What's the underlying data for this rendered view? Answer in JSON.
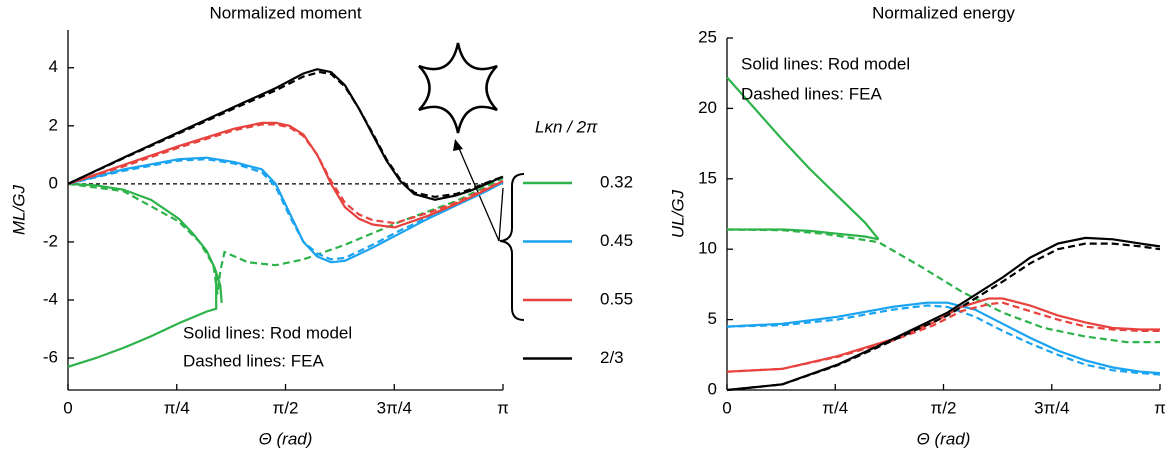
{
  "chart_data": [
    {
      "type": "line",
      "title": "Normalized moment",
      "xlabel": "Θ (rad)",
      "ylabel": "ML/GJ",
      "xlim": [
        0,
        3.1416
      ],
      "ylim": [
        -7.1,
        5.3
      ],
      "xticks": [
        0,
        {
          "value": 0.7854,
          "label": "π/4"
        },
        {
          "value": 1.5708,
          "label": "π/2"
        },
        {
          "value": 2.3562,
          "label": "3π/4"
        },
        {
          "value": 3.1416,
          "label": "π"
        }
      ],
      "yticks": [
        -6,
        -4,
        -2,
        0,
        2,
        4
      ],
      "zero_line": true,
      "legend": true,
      "legend_title": "Lκn / 2π",
      "annotations": [
        "Solid lines: Rod model",
        "Dashed lines: FEA"
      ],
      "series": [
        {
          "name": "0.32",
          "color": "#2db34a",
          "style": "solid",
          "x": [
            0,
            0.2,
            0.4,
            0.6,
            0.8,
            0.9,
            1.0,
            1.06,
            1.1,
            1.11,
            null,
            0,
            0.2,
            0.4,
            0.6,
            0.8,
            1.0,
            1.07,
            1.07
          ],
          "values": [
            0,
            -0.05,
            -0.2,
            -0.55,
            -1.2,
            -1.7,
            -2.3,
            -2.9,
            -3.5,
            -4.1,
            null,
            -6.3,
            -6.0,
            -5.65,
            -5.25,
            -4.8,
            -4.4,
            -4.3,
            -3.0
          ]
        },
        {
          "name": "0.32",
          "color": "#2db34a",
          "style": "dashed",
          "x": [
            0,
            0.4,
            0.8,
            0.95,
            1.05,
            1.08,
            1.1,
            1.13,
            1.3,
            1.5,
            1.7,
            2.0,
            2.4,
            2.8,
            3.1416
          ],
          "values": [
            0,
            -0.25,
            -1.3,
            -2.0,
            -2.8,
            -3.8,
            -3.0,
            -2.35,
            -2.7,
            -2.8,
            -2.6,
            -2.1,
            -1.3,
            -0.6,
            0.2
          ]
        },
        {
          "name": "0.45",
          "color": "#1aa3f0",
          "style": "solid",
          "x": [
            0,
            0.4,
            0.8,
            1.0,
            1.2,
            1.4,
            1.5,
            1.6,
            1.7,
            1.8,
            1.9,
            2.0,
            2.2,
            2.4,
            2.6,
            2.8,
            3.0,
            3.1416
          ],
          "values": [
            0,
            0.5,
            0.85,
            0.9,
            0.75,
            0.5,
            0.0,
            -1.0,
            -2.0,
            -2.5,
            -2.7,
            -2.65,
            -2.2,
            -1.7,
            -1.2,
            -0.75,
            -0.3,
            0.05
          ]
        },
        {
          "name": "0.45",
          "color": "#1aa3f0",
          "style": "dashed",
          "x": [
            0,
            0.4,
            0.8,
            1.0,
            1.2,
            1.4,
            1.5,
            1.6,
            1.7,
            1.8,
            1.9,
            2.0,
            2.2,
            2.4,
            2.6,
            2.8,
            3.0,
            3.1416
          ],
          "values": [
            0,
            0.45,
            0.8,
            0.85,
            0.7,
            0.4,
            -0.1,
            -1.1,
            -2.0,
            -2.4,
            -2.6,
            -2.55,
            -2.1,
            -1.6,
            -1.15,
            -0.7,
            -0.3,
            0.05
          ]
        },
        {
          "name": "0.55",
          "color": "#e8423f",
          "style": "solid",
          "x": [
            0,
            0.4,
            0.8,
            1.2,
            1.4,
            1.5,
            1.6,
            1.7,
            1.8,
            1.9,
            2.0,
            2.1,
            2.2,
            2.36,
            2.6,
            2.8,
            3.0,
            3.1416
          ],
          "values": [
            0,
            0.65,
            1.3,
            1.9,
            2.1,
            2.1,
            2.0,
            1.7,
            1.0,
            0.0,
            -0.8,
            -1.2,
            -1.4,
            -1.5,
            -1.1,
            -0.7,
            -0.25,
            0.1
          ]
        },
        {
          "name": "0.55",
          "color": "#e8423f",
          "style": "dashed",
          "x": [
            0,
            0.4,
            0.8,
            1.2,
            1.4,
            1.5,
            1.6,
            1.7,
            1.8,
            1.9,
            2.0,
            2.1,
            2.2,
            2.36,
            2.6,
            2.8,
            3.0,
            3.1416
          ],
          "values": [
            0,
            0.6,
            1.25,
            1.85,
            2.05,
            2.05,
            1.95,
            1.65,
            1.0,
            0.1,
            -0.65,
            -1.05,
            -1.25,
            -1.35,
            -1.0,
            -0.65,
            -0.2,
            0.1
          ]
        },
        {
          "name": "2/3",
          "color": "#000000",
          "style": "solid",
          "x": [
            0,
            0.4,
            0.8,
            1.2,
            1.5,
            1.7,
            1.8,
            1.9,
            2.0,
            2.1,
            2.2,
            2.3,
            2.4,
            2.5,
            2.65,
            2.8,
            2.9,
            3.0,
            3.1416
          ],
          "values": [
            0,
            0.9,
            1.78,
            2.65,
            3.3,
            3.8,
            3.95,
            3.85,
            3.4,
            2.6,
            1.7,
            0.8,
            0.1,
            -0.35,
            -0.55,
            -0.4,
            -0.25,
            -0.05,
            0.25
          ]
        },
        {
          "name": "2/3",
          "color": "#000000",
          "style": "dashed",
          "x": [
            0,
            0.4,
            0.8,
            1.2,
            1.5,
            1.7,
            1.82,
            1.9,
            2.0,
            2.1,
            2.2,
            2.3,
            2.4,
            2.5,
            2.65,
            2.8,
            2.9,
            3.0,
            3.1416
          ],
          "values": [
            0,
            0.88,
            1.74,
            2.6,
            3.22,
            3.7,
            3.85,
            3.78,
            3.35,
            2.6,
            1.75,
            0.85,
            0.15,
            -0.3,
            -0.45,
            -0.35,
            -0.2,
            0.0,
            0.25
          ]
        }
      ]
    },
    {
      "type": "line",
      "title": "Normalized energy",
      "xlabel": "Θ (rad)",
      "ylabel": "UL/GJ",
      "xlim": [
        0,
        3.1416
      ],
      "ylim": [
        0,
        25
      ],
      "xticks": [
        0,
        {
          "value": 0.7854,
          "label": "π/4"
        },
        {
          "value": 1.5708,
          "label": "π/2"
        },
        {
          "value": 2.3562,
          "label": "3π/4"
        },
        {
          "value": 3.1416,
          "label": "π"
        }
      ],
      "yticks": [
        0,
        5,
        10,
        15,
        20,
        25
      ],
      "zero_line": false,
      "legend": false,
      "annotations": [
        "Solid lines: Rod model",
        "Dashed lines: FEA"
      ],
      "series": [
        {
          "name": "0.32",
          "color": "#2db34a",
          "style": "solid",
          "x": [
            0,
            0.2,
            0.4,
            0.6,
            0.8,
            1.0,
            1.1,
            null,
            0,
            0.4,
            0.6,
            0.8,
            1.0,
            1.1
          ],
          "values": [
            22.2,
            20.0,
            17.8,
            15.7,
            13.8,
            11.9,
            10.7,
            null,
            11.4,
            11.4,
            11.3,
            11.1,
            10.9,
            10.7
          ]
        },
        {
          "name": "0.32",
          "color": "#2db34a",
          "style": "dashed",
          "x": [
            0,
            0.4,
            0.7,
            0.9,
            1.1,
            1.4,
            1.7,
            2.0,
            2.3,
            2.6,
            2.9,
            3.1416
          ],
          "values": [
            11.4,
            11.35,
            11.1,
            10.8,
            10.5,
            8.8,
            7.0,
            5.5,
            4.4,
            3.8,
            3.4,
            3.4
          ]
        },
        {
          "name": "0.45",
          "color": "#1aa3f0",
          "style": "solid",
          "x": [
            0,
            0.4,
            0.8,
            1.2,
            1.45,
            1.6,
            1.8,
            2.0,
            2.2,
            2.4,
            2.6,
            2.8,
            3.0,
            3.1416
          ],
          "values": [
            4.5,
            4.7,
            5.2,
            5.9,
            6.2,
            6.2,
            5.7,
            4.7,
            3.7,
            2.8,
            2.1,
            1.6,
            1.3,
            1.2
          ]
        },
        {
          "name": "0.45",
          "color": "#1aa3f0",
          "style": "dashed",
          "x": [
            0,
            0.4,
            0.8,
            1.2,
            1.45,
            1.6,
            1.8,
            2.0,
            2.2,
            2.4,
            2.6,
            2.8,
            3.0,
            3.1416
          ],
          "values": [
            4.5,
            4.6,
            5.0,
            5.7,
            6.0,
            5.9,
            5.2,
            4.2,
            3.3,
            2.5,
            1.8,
            1.4,
            1.2,
            1.1
          ]
        },
        {
          "name": "0.55",
          "color": "#e8423f",
          "style": "solid",
          "x": [
            0,
            0.4,
            0.8,
            1.2,
            1.5,
            1.7,
            1.9,
            2.0,
            2.2,
            2.4,
            2.6,
            2.8,
            3.0,
            3.1416
          ],
          "values": [
            1.3,
            1.5,
            2.4,
            3.6,
            4.8,
            5.9,
            6.5,
            6.5,
            6.0,
            5.3,
            4.8,
            4.4,
            4.3,
            4.3
          ]
        },
        {
          "name": "0.55",
          "color": "#e8423f",
          "style": "dashed",
          "x": [
            0,
            0.4,
            0.8,
            1.2,
            1.5,
            1.7,
            1.9,
            2.0,
            2.2,
            2.4,
            2.6,
            2.8,
            3.0,
            3.1416
          ],
          "values": [
            1.3,
            1.5,
            2.35,
            3.5,
            4.6,
            5.6,
            6.1,
            6.2,
            5.6,
            5.0,
            4.5,
            4.3,
            4.2,
            4.2
          ]
        },
        {
          "name": "2/3",
          "color": "#000000",
          "style": "solid",
          "x": [
            0,
            0.4,
            0.8,
            1.2,
            1.6,
            2.0,
            2.2,
            2.4,
            2.6,
            2.8,
            3.0,
            3.1416
          ],
          "values": [
            0,
            0.4,
            1.8,
            3.6,
            5.5,
            8.0,
            9.4,
            10.4,
            10.8,
            10.7,
            10.4,
            10.2
          ]
        },
        {
          "name": "2/3",
          "color": "#000000",
          "style": "dashed",
          "x": [
            0,
            0.4,
            0.8,
            1.2,
            1.6,
            2.0,
            2.2,
            2.4,
            2.6,
            2.8,
            3.0,
            3.1416
          ],
          "values": [
            0,
            0.4,
            1.75,
            3.5,
            5.3,
            7.7,
            9.0,
            10.0,
            10.4,
            10.4,
            10.2,
            10.0
          ]
        }
      ]
    }
  ]
}
